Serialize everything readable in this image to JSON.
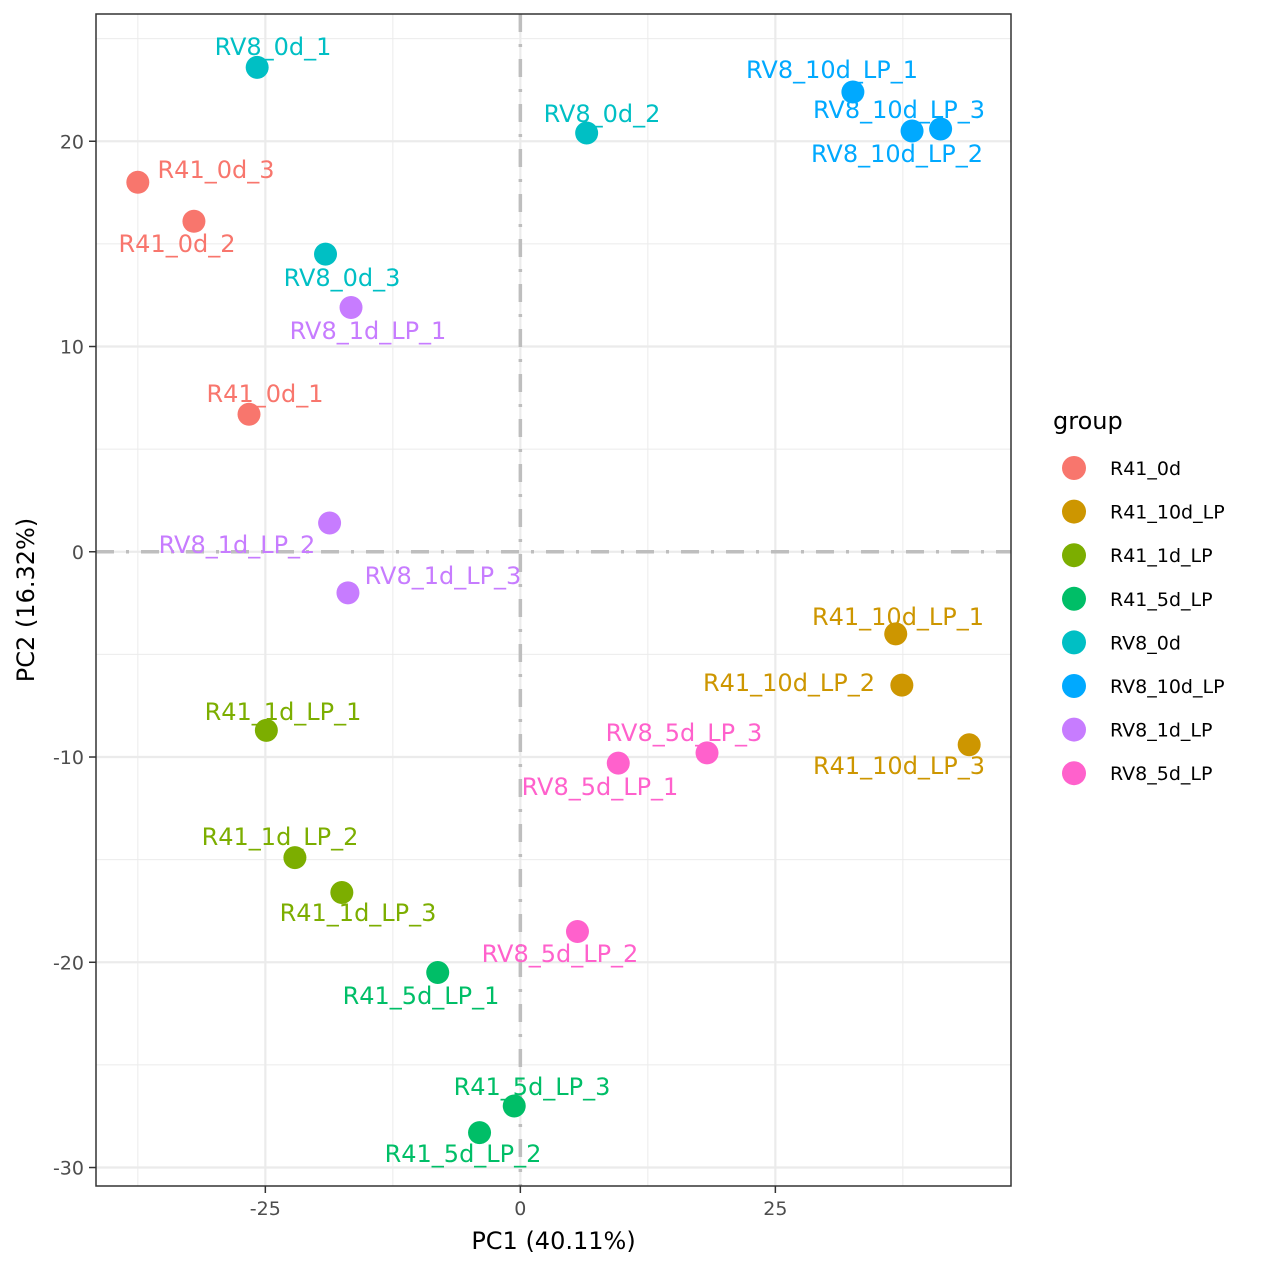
{
  "chart_data": {
    "type": "scatter",
    "title": "",
    "xlabel": "PC1 (40.11%)",
    "ylabel": "PC2 (16.32%)",
    "xlim": [
      -41.6,
      48.1
    ],
    "ylim": [
      -30.9,
      26.2
    ],
    "x_ticks": [
      -25,
      0,
      25
    ],
    "x_tick_labels": [
      "-25",
      "0",
      "25"
    ],
    "y_ticks": [
      -30,
      -20,
      -10,
      0,
      10,
      20
    ],
    "y_tick_labels": [
      "-30",
      "-20",
      "-10",
      "0",
      "10",
      "20"
    ],
    "x_minor_ticks": [
      -37.5,
      -12.5,
      12.5,
      37.5
    ],
    "y_minor_ticks": [
      -25,
      -15,
      -5,
      5,
      15,
      25
    ],
    "grid": true,
    "reference_lines": {
      "x": 0,
      "y": 0,
      "style": "dashdot",
      "color": "#BEBEBE"
    },
    "legend": {
      "title": "group",
      "placement": "right",
      "entries": [
        {
          "name": "R41_0d",
          "color": "#F8766D"
        },
        {
          "name": "R41_10d_LP",
          "color": "#CD9600"
        },
        {
          "name": "R41_1d_LP",
          "color": "#7CAE00"
        },
        {
          "name": "R41_5d_LP",
          "color": "#00BE67"
        },
        {
          "name": "RV8_0d",
          "color": "#00BFC4"
        },
        {
          "name": "RV8_10d_LP",
          "color": "#00A9FF"
        },
        {
          "name": "RV8_1d_LP",
          "color": "#C77CFF"
        },
        {
          "name": "RV8_5d_LP",
          "color": "#FF61CC"
        }
      ]
    },
    "points": [
      {
        "label": "RV8_0d_1",
        "group": "RV8_0d",
        "x": -25.8,
        "y": 23.6
      },
      {
        "label": "RV8_0d_2",
        "group": "RV8_0d",
        "x": 6.5,
        "y": 20.4
      },
      {
        "label": "RV8_0d_3",
        "group": "RV8_0d",
        "x": -19.1,
        "y": 14.5
      },
      {
        "label": "R41_0d_3",
        "group": "R41_0d",
        "x": -37.5,
        "y": 18.0
      },
      {
        "label": "R41_0d_2",
        "group": "R41_0d",
        "x": -32.0,
        "y": 16.1
      },
      {
        "label": "R41_0d_1",
        "group": "R41_0d",
        "x": -26.6,
        "y": 6.7
      },
      {
        "label": "RV8_1d_LP_1",
        "group": "RV8_1d_LP",
        "x": -16.6,
        "y": 11.9
      },
      {
        "label": "RV8_1d_LP_2",
        "group": "RV8_1d_LP",
        "x": -18.7,
        "y": 1.4
      },
      {
        "label": "RV8_1d_LP_3",
        "group": "RV8_1d_LP",
        "x": -16.9,
        "y": -2.0
      },
      {
        "label": "RV8_10d_LP_1",
        "group": "RV8_10d_LP",
        "x": 32.6,
        "y": 22.4
      },
      {
        "label": "RV8_10d_LP_3",
        "group": "RV8_10d_LP",
        "x": 41.2,
        "y": 20.6
      },
      {
        "label": "RV8_10d_LP_2",
        "group": "RV8_10d_LP",
        "x": 38.4,
        "y": 20.5
      },
      {
        "label": "R41_10d_LP_1",
        "group": "R41_10d_LP",
        "x": 36.8,
        "y": -4.0
      },
      {
        "label": "R41_10d_LP_2",
        "group": "R41_10d_LP",
        "x": 37.4,
        "y": -6.5
      },
      {
        "label": "R41_10d_LP_3",
        "group": "R41_10d_LP",
        "x": 44.0,
        "y": -9.4
      },
      {
        "label": "RV8_5d_LP_3",
        "group": "RV8_5d_LP",
        "x": 18.3,
        "y": -9.8
      },
      {
        "label": "RV8_5d_LP_1",
        "group": "RV8_5d_LP",
        "x": 9.6,
        "y": -10.3
      },
      {
        "label": "RV8_5d_LP_2",
        "group": "RV8_5d_LP",
        "x": 5.6,
        "y": -18.5
      },
      {
        "label": "R41_1d_LP_1",
        "group": "R41_1d_LP",
        "x": -24.9,
        "y": -8.7
      },
      {
        "label": "R41_1d_LP_2",
        "group": "R41_1d_LP",
        "x": -22.1,
        "y": -14.9
      },
      {
        "label": "R41_1d_LP_3",
        "group": "R41_1d_LP",
        "x": -17.5,
        "y": -16.6
      },
      {
        "label": "R41_5d_LP_1",
        "group": "R41_5d_LP",
        "x": -8.1,
        "y": -20.5
      },
      {
        "label": "R41_5d_LP_3",
        "group": "R41_5d_LP",
        "x": -0.6,
        "y": -27.0
      },
      {
        "label": "R41_5d_LP_2",
        "group": "R41_5d_LP",
        "x": -4.0,
        "y": -28.3
      }
    ]
  }
}
